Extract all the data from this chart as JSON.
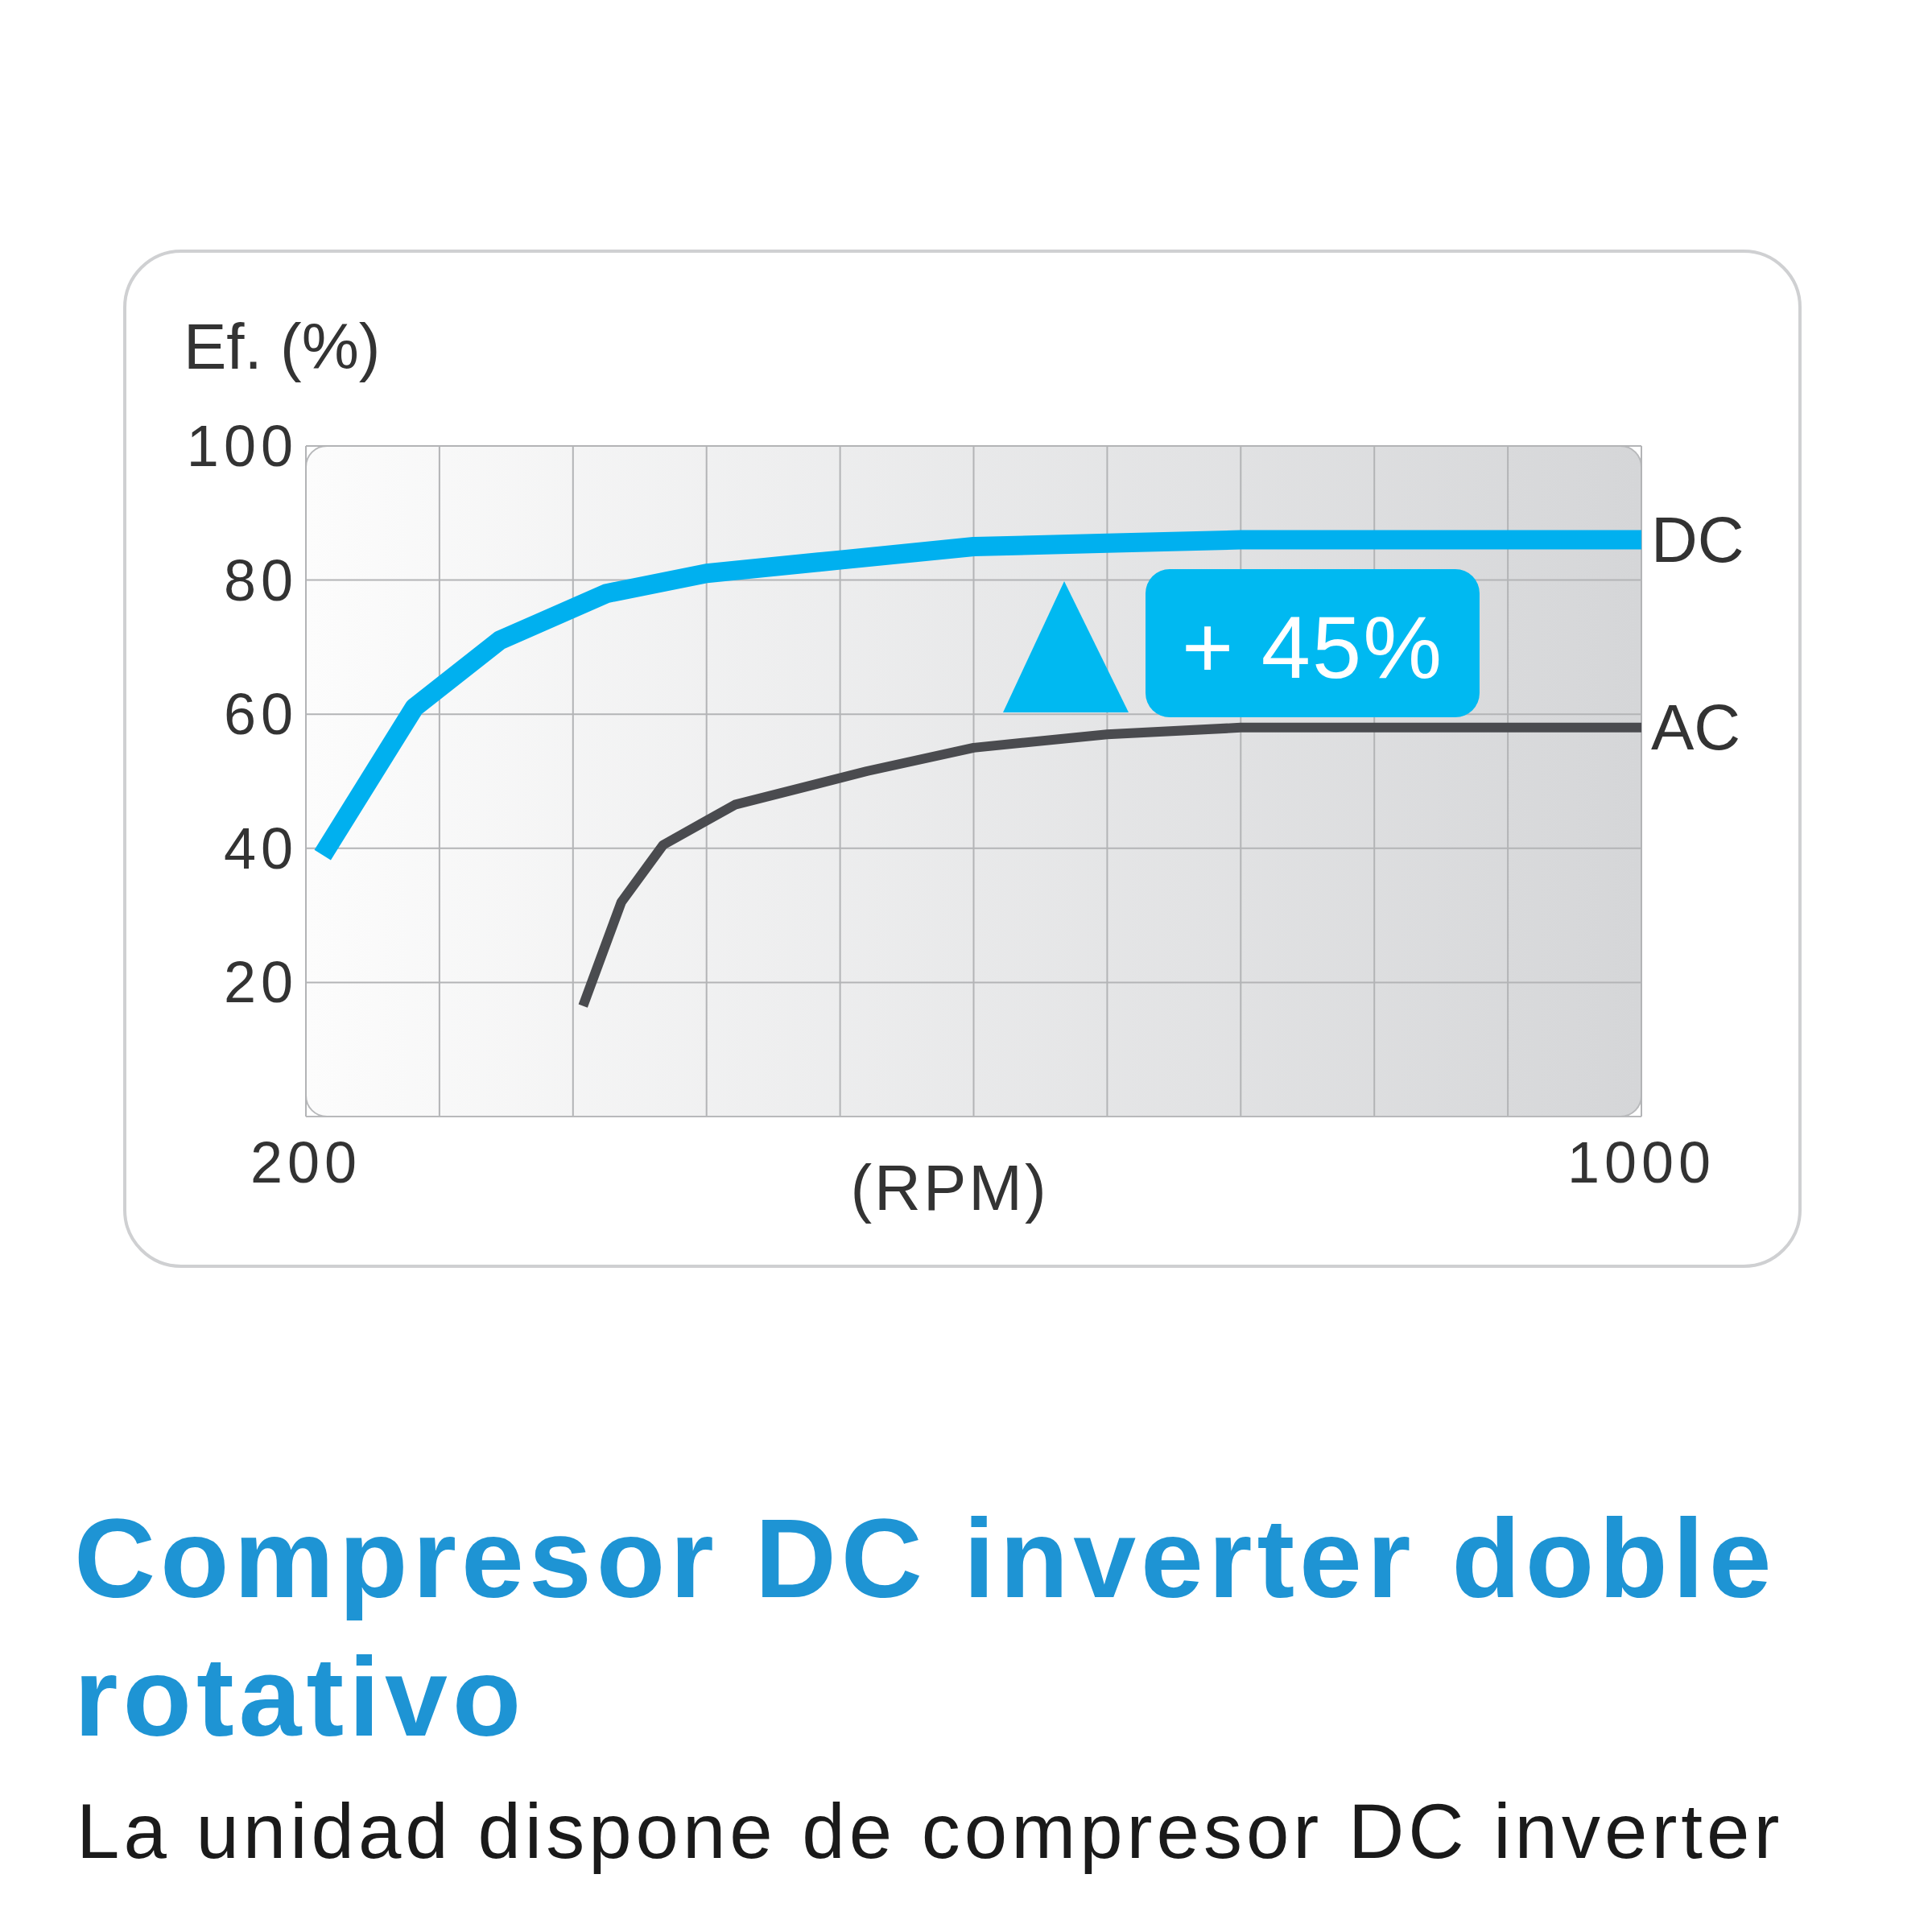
{
  "chart_data": {
    "type": "line",
    "title": "Compresor DC inverter doble rotativo",
    "subtitle": "La unidad dispone de compresor DC inverter",
    "xlabel": "(RPM)",
    "ylabel": "Ef. (%)",
    "series": [
      {
        "name": "DC",
        "color": "#00b0ef",
        "x": [
          210,
          265,
          316,
          380,
          440,
          520,
          600,
          680,
          760,
          1000
        ],
        "values": [
          39,
          61,
          71,
          78,
          81,
          83,
          85,
          85.5,
          86,
          86
        ]
      },
      {
        "name": "AC",
        "color": "#4a4b4f",
        "x": [
          366,
          389,
          414,
          457,
          536,
          600,
          680,
          760,
          1000
        ],
        "values": [
          16.5,
          32,
          40.5,
          46.5,
          51.5,
          55,
          57,
          58,
          58
        ]
      }
    ],
    "xlim": [
      200,
      1000
    ],
    "xticks": [
      200,
      {
        "value": 280,
        "label": null
      },
      {
        "value": 360,
        "label": null
      },
      {
        "value": 440,
        "label": null
      },
      {
        "value": 520,
        "label": null
      },
      {
        "value": 600,
        "label": null
      },
      {
        "value": 680,
        "label": null
      },
      {
        "value": 760,
        "label": null
      },
      {
        "value": 840,
        "label": null
      },
      {
        "value": 920,
        "label": null
      },
      1000
    ],
    "ylim": [
      0,
      100
    ],
    "yticks": [
      20,
      40,
      60,
      80,
      100
    ],
    "grid": true,
    "line_style": "solid",
    "annotations": [
      "+ 45%"
    ]
  }
}
